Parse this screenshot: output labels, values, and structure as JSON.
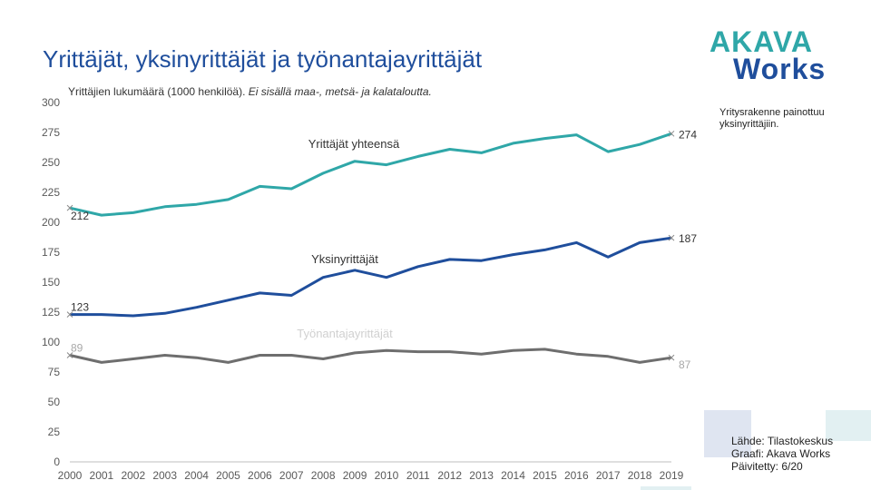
{
  "header": {
    "title": "Yrittäjät, yksinyrittäjät ja työnantajayrittäjät",
    "subtitle_main": "Yrittäjien lukumäärä (1000 henkilöä).",
    "subtitle_note": "Ei sisällä maa-, metsä- ja kalataloutta."
  },
  "logo": {
    "line1": "AKAVA",
    "line2": "Works"
  },
  "side_note": "Yritysrakenne painottuu yksinyrittäjiin.",
  "source": {
    "line1": "Lähde: Tilastokeskus",
    "line2": "Graafi: Akava Works",
    "line3": "Päivitetty: 6/20"
  },
  "colors": {
    "title": "#1f4e9c",
    "total": "#2fa7a8",
    "solo": "#1f4e9c",
    "employer": "#6e6e6e",
    "axis_text": "#595959"
  },
  "chart_data": {
    "type": "line",
    "title": "Yrittäjien lukumäärä (1000 henkilöä)",
    "xlabel": "",
    "ylabel": "",
    "ylim": [
      0,
      300
    ],
    "yticks": [
      0,
      25,
      50,
      75,
      100,
      125,
      150,
      175,
      200,
      225,
      250,
      275,
      300
    ],
    "grid": false,
    "x": [
      "2000",
      "2001",
      "2002",
      "2003",
      "2004",
      "2005",
      "2006",
      "2007",
      "2008",
      "2009",
      "2010",
      "2011",
      "2012",
      "2013",
      "2014",
      "2015",
      "2016",
      "2017",
      "2018",
      "2019"
    ],
    "series": [
      {
        "name": "Yrittäjät yhteensä",
        "color": "#2fa7a8",
        "values": [
          212,
          206,
          208,
          213,
          215,
          219,
          230,
          228,
          241,
          251,
          248,
          255,
          261,
          258,
          266,
          270,
          273,
          259,
          265,
          274
        ],
        "start_label": "212",
        "end_label": "274"
      },
      {
        "name": "Yksinyrittäjät",
        "color": "#1f4e9c",
        "values": [
          123,
          123,
          122,
          124,
          129,
          135,
          141,
          139,
          154,
          160,
          154,
          163,
          169,
          168,
          173,
          177,
          183,
          171,
          183,
          187
        ],
        "start_label": "123",
        "end_label": "187"
      },
      {
        "name": "Työnantajayrittäjät",
        "color": "#6e6e6e",
        "values": [
          89,
          83,
          86,
          89,
          87,
          83,
          89,
          89,
          86,
          91,
          93,
          92,
          92,
          90,
          93,
          94,
          90,
          88,
          83,
          87
        ],
        "start_label": "89",
        "end_label": "87"
      }
    ]
  }
}
